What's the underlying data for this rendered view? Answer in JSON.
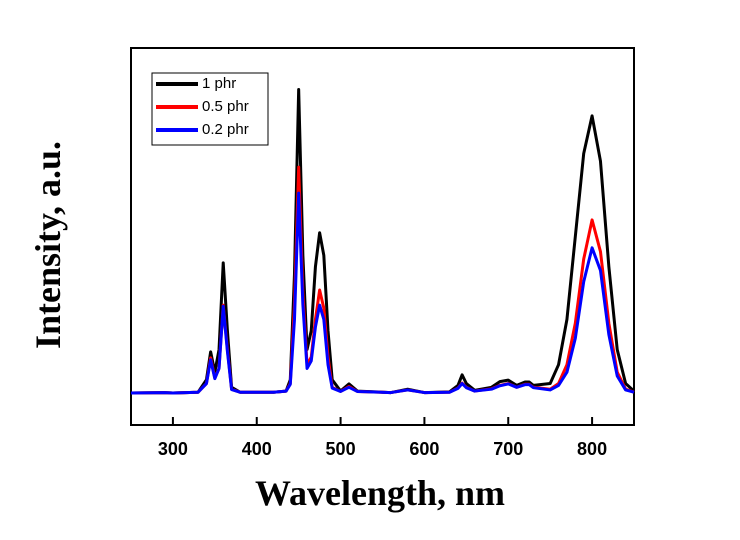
{
  "chart_data": {
    "type": "line",
    "xlabel": "Wavelength, nm",
    "ylabel": "Intensity, a.u.",
    "xlim": [
      250,
      850
    ],
    "xticks": [
      300,
      400,
      500,
      600,
      700,
      800
    ],
    "ylim": [
      0,
      100
    ],
    "legend": "upper left",
    "x": [
      250,
      290,
      300,
      330,
      340,
      345,
      350,
      355,
      360,
      365,
      370,
      380,
      420,
      435,
      440,
      445,
      450,
      455,
      460,
      465,
      470,
      475,
      480,
      485,
      490,
      500,
      510,
      520,
      560,
      580,
      600,
      630,
      640,
      645,
      650,
      660,
      680,
      690,
      700,
      710,
      720,
      725,
      730,
      750,
      760,
      770,
      780,
      790,
      800,
      810,
      820,
      830,
      840,
      850
    ],
    "series": [
      {
        "name": "1 phr",
        "color": "#000000",
        "values": [
          8.5,
          8.6,
          8.5,
          8.7,
          12,
          19.4,
          14,
          20,
          43,
          25,
          10,
          8.7,
          8.7,
          9,
          12,
          40,
          89,
          45,
          20,
          25,
          42,
          51,
          45,
          25,
          12,
          9,
          10.9,
          9,
          8.6,
          9.5,
          8.6,
          8.8,
          10.5,
          13.3,
          11,
          9.2,
          10,
          11.5,
          11.9,
          10.5,
          11.4,
          11.4,
          10.5,
          11,
          16,
          28,
          50,
          72,
          82,
          70,
          42,
          20,
          11,
          9
        ]
      },
      {
        "name": "0.5 phr",
        "color": "#ff0000",
        "values": [
          8.5,
          8.6,
          8.5,
          8.7,
          11,
          17.8,
          12.5,
          15,
          31.8,
          20,
          9.5,
          8.7,
          8.7,
          9,
          11,
          32,
          68.4,
          35,
          16,
          18,
          28,
          35.8,
          31,
          18,
          10,
          8.9,
          10.2,
          8.9,
          8.6,
          9.3,
          8.6,
          8.7,
          9.8,
          11.1,
          10,
          9,
          9.6,
          10.5,
          11,
          10,
          10.8,
          10.8,
          10,
          9.5,
          11,
          16,
          27,
          44,
          54.4,
          46,
          27,
          14,
          9.5,
          8.7
        ]
      },
      {
        "name": "0.2 phr",
        "color": "#0000ff",
        "values": [
          8.5,
          8.6,
          8.5,
          8.7,
          11,
          17.3,
          12.3,
          15,
          31.5,
          19.5,
          9.4,
          8.7,
          8.7,
          9,
          10.8,
          28,
          61.5,
          32,
          15,
          17,
          26,
          31.8,
          28,
          16,
          9.8,
          8.9,
          10,
          8.9,
          8.6,
          9.3,
          8.6,
          8.7,
          9.7,
          11,
          9.9,
          9,
          9.5,
          10.4,
          10.9,
          10,
          10.7,
          10.7,
          9.9,
          9.3,
          10.5,
          14,
          23,
          38,
          47,
          41,
          24,
          13,
          9.3,
          8.7
        ]
      }
    ]
  }
}
